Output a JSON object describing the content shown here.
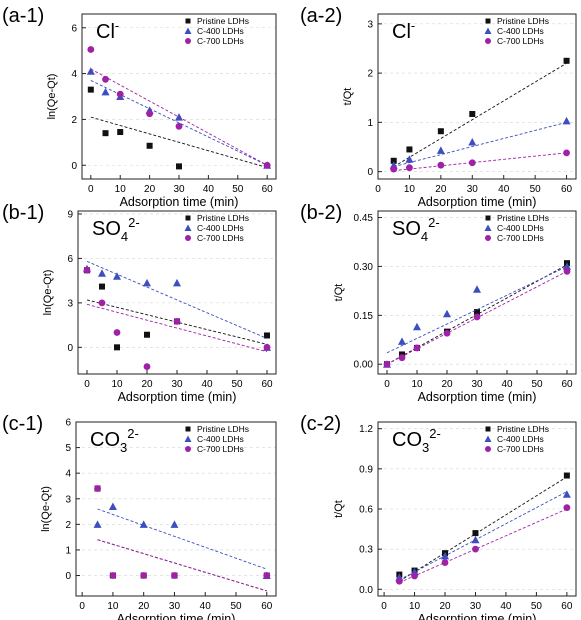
{
  "figure": {
    "legend_location": "top-right",
    "colors": {
      "pristine": "#111111",
      "c400": "#3c4ec0",
      "c700": "#a020a8"
    },
    "markers": {
      "pristine": "square",
      "c400": "triangle",
      "c700": "circle"
    }
  },
  "chart_data": [
    {
      "id": "a1",
      "type": "scatter",
      "panel_label": "(a-1)",
      "ion_base": "Cl",
      "ion_sub": "",
      "ion_sup": "-",
      "xlabel": "Adsorption time (min)",
      "ylabel": "ln(Qe-Qt)",
      "xlim": [
        -3,
        63
      ],
      "ylim": [
        -0.6,
        6.6
      ],
      "xticks": [
        0,
        10,
        20,
        30,
        40,
        50,
        60
      ],
      "yticks": [
        0,
        2,
        4,
        6
      ],
      "grid": true,
      "series": [
        {
          "name": "Pristine LDHs",
          "color": "#111111",
          "marker": "square",
          "x": [
            0,
            5,
            10,
            20,
            30
          ],
          "y": [
            3.3,
            1.4,
            1.45,
            0.85,
            -0.05
          ],
          "fit": [
            [
              0,
              2.1
            ],
            [
              60,
              -0.1
            ]
          ]
        },
        {
          "name": "C-400 LDHs",
          "color": "#3c4ec0",
          "marker": "triangle",
          "x": [
            0,
            5,
            10,
            20,
            30,
            60
          ],
          "y": [
            4.1,
            3.2,
            3.0,
            2.4,
            2.1,
            0.0
          ],
          "fit": [
            [
              0,
              3.7
            ],
            [
              60,
              0.0
            ]
          ]
        },
        {
          "name": "C-700 LDHs",
          "color": "#a020a8",
          "marker": "circle",
          "x": [
            0,
            5,
            10,
            20,
            30,
            60
          ],
          "y": [
            5.05,
            3.75,
            3.1,
            2.25,
            1.7,
            0.0
          ],
          "fit": [
            [
              0,
              4.2
            ],
            [
              60,
              0.0
            ]
          ]
        }
      ]
    },
    {
      "id": "a2",
      "type": "scatter",
      "panel_label": "(a-2)",
      "ion_base": "Cl",
      "ion_sub": "",
      "ion_sup": "-",
      "xlabel": "Adsorption time (min)",
      "ylabel": "t/Qt",
      "xlim": [
        0,
        63
      ],
      "ylim": [
        -0.15,
        3.2
      ],
      "xticks": [
        0,
        10,
        20,
        30,
        40,
        50,
        60
      ],
      "yticks": [
        0,
        1,
        2,
        3
      ],
      "grid": true,
      "series": [
        {
          "name": "Pristine LDHs",
          "color": "#111111",
          "marker": "square",
          "x": [
            5,
            10,
            20,
            30,
            60
          ],
          "y": [
            0.22,
            0.45,
            0.82,
            1.17,
            2.25
          ],
          "fit": [
            [
              5,
              0.1
            ],
            [
              60,
              2.2
            ]
          ]
        },
        {
          "name": "C-400 LDHs",
          "color": "#3c4ec0",
          "marker": "triangle",
          "x": [
            5,
            10,
            20,
            30,
            60
          ],
          "y": [
            0.13,
            0.25,
            0.43,
            0.6,
            1.03
          ],
          "fit": [
            [
              5,
              0.1
            ],
            [
              60,
              1.0
            ]
          ]
        },
        {
          "name": "C-700 LDHs",
          "color": "#a020a8",
          "marker": "circle",
          "x": [
            5,
            10,
            20,
            30,
            60
          ],
          "y": [
            0.05,
            0.08,
            0.13,
            0.18,
            0.38
          ],
          "fit": [
            [
              5,
              0.02
            ],
            [
              60,
              0.38
            ]
          ]
        }
      ]
    },
    {
      "id": "b1",
      "type": "scatter",
      "panel_label": "(b-1)",
      "ion_base": "SO",
      "ion_sub": "4",
      "ion_sup": "2-",
      "xlabel": "Adsorption time (min)",
      "ylabel": "ln(Qe-Qt)",
      "xlim": [
        -3,
        63
      ],
      "ylim": [
        -1.8,
        9.2
      ],
      "xticks": [
        0,
        10,
        20,
        30,
        40,
        50,
        60
      ],
      "yticks": [
        0,
        3,
        6,
        9
      ],
      "grid": true,
      "series": [
        {
          "name": "Pristine LDHs",
          "color": "#111111",
          "marker": "square",
          "x": [
            0,
            5,
            10,
            20,
            30,
            60
          ],
          "y": [
            5.2,
            4.1,
            0.0,
            0.85,
            1.75,
            0.8
          ],
          "fit": [
            [
              0,
              3.2
            ],
            [
              60,
              0.2
            ]
          ]
        },
        {
          "name": "C-400 LDHs",
          "color": "#3c4ec0",
          "marker": "triangle",
          "x": [
            0,
            5,
            10,
            20,
            30,
            60
          ],
          "y": [
            5.3,
            5.0,
            4.8,
            4.35,
            4.35,
            0.0
          ],
          "fit": [
            [
              0,
              5.8
            ],
            [
              60,
              0.6
            ]
          ]
        },
        {
          "name": "C-700 LDHs",
          "color": "#a020a8",
          "marker": "circle",
          "x": [
            0,
            5,
            10,
            20,
            30,
            60
          ],
          "y": [
            5.2,
            3.0,
            1.0,
            -1.3,
            1.75,
            0.0
          ],
          "fit": [
            [
              0,
              2.9
            ],
            [
              60,
              -0.3
            ]
          ]
        }
      ]
    },
    {
      "id": "b2",
      "type": "scatter",
      "panel_label": "(b-2)",
      "ion_base": "SO",
      "ion_sub": "4",
      "ion_sup": "2-",
      "xlabel": "Adsorption time (min)",
      "ylabel": "t/Qt",
      "xlim": [
        -3,
        63
      ],
      "ylim": [
        -0.03,
        0.47
      ],
      "xticks": [
        0,
        10,
        20,
        30,
        40,
        50,
        60
      ],
      "yticks": [
        0.0,
        0.15,
        0.3,
        0.45
      ],
      "ytick_labels": [
        "0.00",
        "0.15",
        "0.30",
        "0.45"
      ],
      "grid": true,
      "series": [
        {
          "name": "Pristine LDHs",
          "color": "#111111",
          "marker": "square",
          "x": [
            0,
            5,
            10,
            20,
            30,
            60
          ],
          "y": [
            0.0,
            0.03,
            0.05,
            0.1,
            0.16,
            0.31
          ],
          "fit": [
            [
              0,
              0.0
            ],
            [
              60,
              0.305
            ]
          ]
        },
        {
          "name": "C-400 LDHs",
          "color": "#3c4ec0",
          "marker": "triangle",
          "x": [
            0,
            5,
            10,
            20,
            30,
            60
          ],
          "y": [
            0.0,
            0.07,
            0.115,
            0.155,
            0.23,
            0.3
          ],
          "fit": [
            [
              0,
              0.035
            ],
            [
              60,
              0.3
            ]
          ]
        },
        {
          "name": "C-700 LDHs",
          "color": "#a020a8",
          "marker": "circle",
          "x": [
            0,
            5,
            10,
            20,
            30,
            60
          ],
          "y": [
            0.0,
            0.02,
            0.05,
            0.095,
            0.145,
            0.285
          ],
          "fit": [
            [
              0,
              0.0
            ],
            [
              60,
              0.285
            ]
          ]
        }
      ]
    },
    {
      "id": "c1",
      "type": "scatter",
      "panel_label": "(c-1)",
      "ion_base": "CO",
      "ion_sub": "3",
      "ion_sup": "2-",
      "xlabel": "Adsorption time (min)",
      "ylabel": "ln(Qe-Qt)",
      "xlim": [
        -2,
        63
      ],
      "ylim": [
        -0.8,
        6
      ],
      "xticks": [
        0,
        10,
        20,
        30,
        40,
        50,
        60
      ],
      "yticks": [
        0,
        1,
        2,
        3,
        4,
        5,
        6
      ],
      "grid": true,
      "series": [
        {
          "name": "Pristine LDHs",
          "color": "#111111",
          "marker": "square",
          "x": [
            5,
            10,
            20,
            30,
            60
          ],
          "y": [
            3.4,
            0.0,
            0.0,
            0.0,
            0.0
          ],
          "fit": [
            [
              5,
              1.4
            ],
            [
              60,
              -0.6
            ]
          ]
        },
        {
          "name": "C-400 LDHs",
          "color": "#3c4ec0",
          "marker": "triangle",
          "x": [
            5,
            10,
            20,
            30,
            60
          ],
          "y": [
            2.0,
            2.7,
            2.0,
            2.0,
            0.0
          ],
          "fit": [
            [
              5,
              2.6
            ],
            [
              60,
              0.25
            ]
          ]
        },
        {
          "name": "C-700 LDHs",
          "color": "#a020a8",
          "marker": "circle",
          "x": [
            5,
            10,
            20,
            30,
            60
          ],
          "y": [
            3.4,
            0.0,
            0.0,
            0.0,
            0.0
          ],
          "fit": [
            [
              5,
              1.4
            ],
            [
              60,
              -0.6
            ]
          ]
        }
      ]
    },
    {
      "id": "c2",
      "type": "scatter",
      "panel_label": "(c-2)",
      "ion_base": "CO",
      "ion_sub": "3",
      "ion_sup": "2-",
      "xlabel": "Adsorption time (min)",
      "ylabel": "t/Qt",
      "xlim": [
        -2,
        63
      ],
      "ylim": [
        -0.05,
        1.25
      ],
      "xticks": [
        0,
        10,
        20,
        30,
        40,
        50,
        60
      ],
      "yticks": [
        0.0,
        0.3,
        0.6,
        0.9,
        1.2
      ],
      "ytick_labels": [
        "0.0",
        "0.3",
        "0.6",
        "0.9",
        "1.2"
      ],
      "grid": true,
      "series": [
        {
          "name": "Pristine LDHs",
          "color": "#111111",
          "marker": "square",
          "x": [
            5,
            10,
            20,
            30,
            60
          ],
          "y": [
            0.11,
            0.14,
            0.27,
            0.42,
            0.85
          ],
          "fit": [
            [
              5,
              0.06
            ],
            [
              60,
              0.84
            ]
          ]
        },
        {
          "name": "C-400 LDHs",
          "color": "#3c4ec0",
          "marker": "triangle",
          "x": [
            5,
            10,
            20,
            30,
            60
          ],
          "y": [
            0.09,
            0.13,
            0.25,
            0.37,
            0.71
          ],
          "fit": [
            [
              5,
              0.07
            ],
            [
              60,
              0.73
            ]
          ]
        },
        {
          "name": "C-700 LDHs",
          "color": "#a020a8",
          "marker": "circle",
          "x": [
            5,
            10,
            20,
            30,
            60
          ],
          "y": [
            0.06,
            0.1,
            0.2,
            0.3,
            0.61
          ],
          "fit": [
            [
              5,
              0.05
            ],
            [
              60,
              0.6
            ]
          ]
        }
      ]
    }
  ]
}
